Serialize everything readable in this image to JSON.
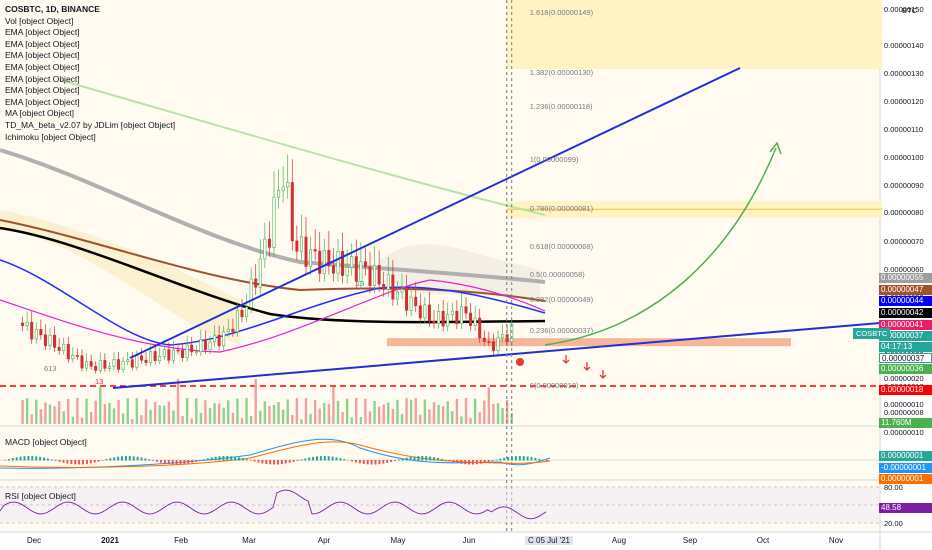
{
  "header": {
    "symbol": "COSBTC, 1D, BINANCE",
    "indicators": [
      "Vol [object Object]",
      "EMA [object Object]",
      "EMA [object Object]",
      "EMA [object Object]",
      "EMA [object Object]",
      "EMA [object Object]",
      "EMA [object Object]",
      "EMA [object Object]",
      "MA [object Object]",
      "TD_MA_beta_v2.07 by JDLim [object Object]",
      "Ichimoku [object Object]"
    ]
  },
  "currency": "BTC",
  "price_axis": [
    "0.00000150",
    "0.00000140",
    "0.00000130",
    "0.00000120",
    "0.00000110",
    "0.00000100",
    "0.00000090",
    "0.00000080",
    "0.00000070",
    "0.00000060",
    "0.00000050",
    "0.00000040",
    "0.00000030",
    "0.00000020",
    "0.00000018",
    "0.00000010",
    "0.00000008"
  ],
  "fib_levels": [
    {
      "label": "1.618(0.00000149)",
      "value": 1.49e-06
    },
    {
      "label": "1.382(0.00000130)",
      "value": 1.3e-06
    },
    {
      "label": "1.236(0.00000118)",
      "value": 1.18e-06
    },
    {
      "label": "1(0.00000099)",
      "value": 9.9e-07
    },
    {
      "label": "0.786(0.00000081)",
      "value": 8.1e-07
    },
    {
      "label": "0.618(0.00000068)",
      "value": 6.8e-07
    },
    {
      "label": "0.5(0.00000058)",
      "value": 5.8e-07
    },
    {
      "label": "0.382(0.00000049)",
      "value": 4.9e-07
    },
    {
      "label": "0.236(0.00000037)",
      "value": 3.7e-07
    },
    {
      "label": "0(0.00000018)",
      "value": 1.8e-07
    }
  ],
  "price_tags": [
    {
      "text": "0.00000055",
      "color": "#9e9e9e"
    },
    {
      "text": "0.00000047",
      "color": "#a0522d"
    },
    {
      "text": "0.00000044",
      "color": "#0000ff"
    },
    {
      "text": "0.00000042",
      "color": "#000000"
    },
    {
      "text": "0.00000041",
      "color": "#e91e63"
    },
    {
      "text": "0.00000037",
      "color": "#26a69a"
    },
    {
      "text": "04:17:13",
      "color": "#26a69a"
    },
    {
      "text": "0.00000037",
      "color": "#ffffff"
    },
    {
      "text": "0.00000036",
      "color": "#4caf50"
    },
    {
      "text": "0.00000018",
      "color": "#ff0000"
    }
  ],
  "ticker_badge": "COSBTC",
  "volume_tag": "11.760M",
  "macd": {
    "label": "MACD [object Object]",
    "axis": [
      "0.00000010",
      "0.00000001",
      "-0.00000001",
      "0.00000001"
    ]
  },
  "rsi": {
    "label": "RSI [object Object]",
    "axis": [
      "80.00",
      "48.58",
      "20.00"
    ],
    "value": 48.58
  },
  "x_axis": [
    "Dec",
    "2021",
    "Feb",
    "Mar",
    "Apr",
    "May",
    "Jun",
    "C 05 Jul '21",
    "Aug",
    "Sep",
    "Oct",
    "Nov"
  ],
  "annotations": [
    "613",
    "13",
    "13"
  ],
  "chart_data": {
    "type": "candlestick",
    "title": "COSBTC, 1D, BINANCE",
    "yunit": "BTC",
    "xlabel": "",
    "ylabel": "",
    "x_range": [
      "2020-12-01",
      "2021-11-30"
    ],
    "y_range": [
      8e-08,
      1.5e-06
    ],
    "close_approx": [
      {
        "date": "2020-12-01",
        "close": 4e-07
      },
      {
        "date": "2020-12-15",
        "close": 3.3e-07
      },
      {
        "date": "2021-01-01",
        "close": 2.4e-07
      },
      {
        "date": "2021-01-15",
        "close": 2.5e-07
      },
      {
        "date": "2021-02-01",
        "close": 2.8e-07
      },
      {
        "date": "2021-02-15",
        "close": 3e-07
      },
      {
        "date": "2021-03-01",
        "close": 3.5e-07
      },
      {
        "date": "2021-03-10",
        "close": 4.5e-07
      },
      {
        "date": "2021-03-20",
        "close": 7e-07
      },
      {
        "date": "2021-03-27",
        "close": 9.5e-07
      },
      {
        "date": "2021-04-01",
        "close": 6.8e-07
      },
      {
        "date": "2021-04-15",
        "close": 6.2e-07
      },
      {
        "date": "2021-05-01",
        "close": 6e-07
      },
      {
        "date": "2021-05-15",
        "close": 5.2e-07
      },
      {
        "date": "2021-06-01",
        "close": 4.1e-07
      },
      {
        "date": "2021-06-15",
        "close": 4.4e-07
      },
      {
        "date": "2021-06-25",
        "close": 3.1e-07
      },
      {
        "date": "2021-07-05",
        "close": 3.7e-07
      }
    ],
    "projection": "Curved green arrow from ~0.00000037 (Jul 2021) to ~0.00000099 (Oct 2021)",
    "support_zone": [
      3.1e-07,
      3.4e-07
    ],
    "rsi_current": 48.58
  }
}
